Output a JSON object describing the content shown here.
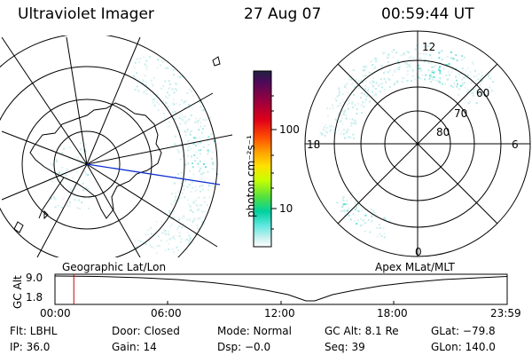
{
  "header": {
    "instrument": "Ultraviolet Imager",
    "date": "27 Aug 07",
    "time": "00:59:44 UT"
  },
  "colorbar": {
    "unit_label": "photon cm⁻²s⁻¹",
    "ticks": [
      "100",
      "10"
    ],
    "scale": "log",
    "colors_top_to_bottom": [
      "#202040",
      "#4b0a5a",
      "#a0003c",
      "#e00018",
      "#ff5000",
      "#ffa000",
      "#ffe000",
      "#c8ff00",
      "#50e040",
      "#00d0a0",
      "#60e8e0",
      "#c8f0f0",
      "#ffffff"
    ]
  },
  "left_map": {
    "caption": "Geographic Lat/Lon"
  },
  "right_map": {
    "caption": "Apex MLat/MLT",
    "mlt_labels": {
      "top": "12",
      "bottom": "0",
      "left": "18",
      "right": "6"
    },
    "lat_labels": [
      "60",
      "70",
      "80"
    ]
  },
  "altitude_plot": {
    "ylabel": "GC Alt",
    "yticks": [
      "9.0",
      "1.8"
    ],
    "xticks": [
      "00:00",
      "06:00",
      "12:00",
      "18:00",
      "23:59"
    ],
    "marker_time_hours": 1.0,
    "marker_color": "#cc0000"
  },
  "info": {
    "filter": "Flt: LBHL",
    "door": "Door: Closed",
    "mode": "Mode: Normal",
    "gc_alt": "GC Alt: 8.1 Re",
    "glat": "GLat: −79.8",
    "ip": "IP: 36.0",
    "gain": "Gain: 14",
    "dsp": "Dsp:    −0.0",
    "seq": "Seq: 39",
    "glon": "GLon: 140.0"
  }
}
